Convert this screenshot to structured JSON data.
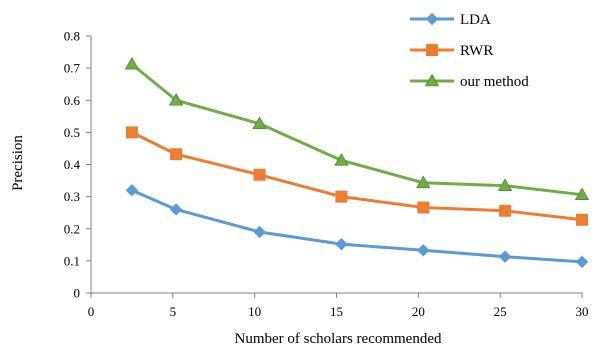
{
  "chart_data": {
    "type": "line",
    "title": "",
    "xlabel": "Number of scholars recommended",
    "ylabel": "Precision",
    "xlim": [
      0,
      30
    ],
    "ylim": [
      0,
      0.8
    ],
    "x_ticks": [
      "0",
      "5",
      "10",
      "15",
      "20",
      "25",
      "30"
    ],
    "y_ticks": [
      "0",
      "0.1",
      "0.2",
      "0.3",
      "0.4",
      "0.5",
      "0.6",
      "0.7",
      "0.8"
    ],
    "x": [
      2.5,
      5.2,
      10.3,
      15.3,
      20.3,
      25.3,
      30
    ],
    "grid": false,
    "legend_position": "top-right",
    "series": [
      {
        "name": "LDA",
        "color": "#5B9BD5",
        "marker": "diamond",
        "values": [
          0.32,
          0.26,
          0.19,
          0.152,
          0.133,
          0.113,
          0.097
        ]
      },
      {
        "name": "RWR",
        "color": "#ED7D31",
        "marker": "square",
        "values": [
          0.5,
          0.432,
          0.368,
          0.3,
          0.266,
          0.256,
          0.228
        ]
      },
      {
        "name": "our method",
        "color": "#70AD47",
        "marker": "triangle",
        "values": [
          0.712,
          0.6,
          0.527,
          0.413,
          0.343,
          0.334,
          0.306
        ]
      }
    ]
  }
}
